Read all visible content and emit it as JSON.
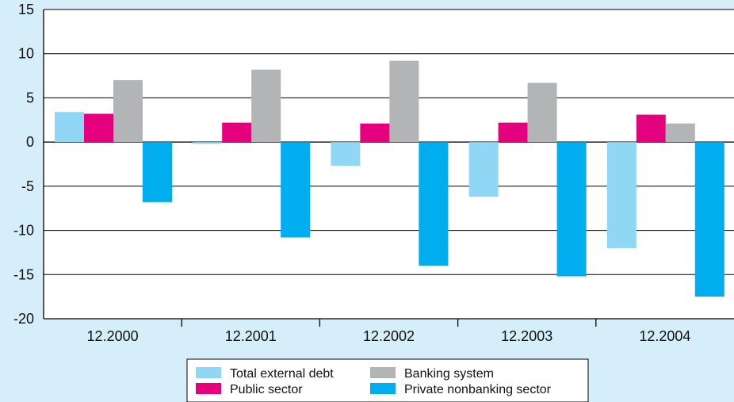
{
  "chart_data": {
    "type": "bar",
    "categories": [
      "12.2000",
      "12.2001",
      "12.2002",
      "12.2003",
      "12.2004"
    ],
    "series": [
      {
        "name": "Total external debt",
        "color": "#8fd7f5",
        "values": [
          3.4,
          -0.2,
          -2.7,
          -6.2,
          -12.0
        ]
      },
      {
        "name": "Public sector",
        "color": "#e5007e",
        "values": [
          3.2,
          2.2,
          2.1,
          2.2,
          3.1
        ]
      },
      {
        "name": "Banking system",
        "color": "#b3b4b6",
        "values": [
          7.0,
          8.2,
          9.2,
          6.7,
          2.1
        ]
      },
      {
        "name": "Private nonbanking sector",
        "color": "#00aeef",
        "values": [
          -6.8,
          -10.8,
          -14.0,
          -15.2,
          -17.5
        ]
      }
    ],
    "ylim": [
      -20,
      15
    ],
    "yticks": [
      "15",
      "10",
      "5",
      "0",
      "-5",
      "-10",
      "-15",
      "-20"
    ],
    "grid": true,
    "legend_position": "bottom-center",
    "title": "",
    "xlabel": "",
    "ylabel": ""
  },
  "colors": {
    "background": "#d6eef9",
    "plot_background": "#ffffff",
    "axis": "#000000"
  }
}
